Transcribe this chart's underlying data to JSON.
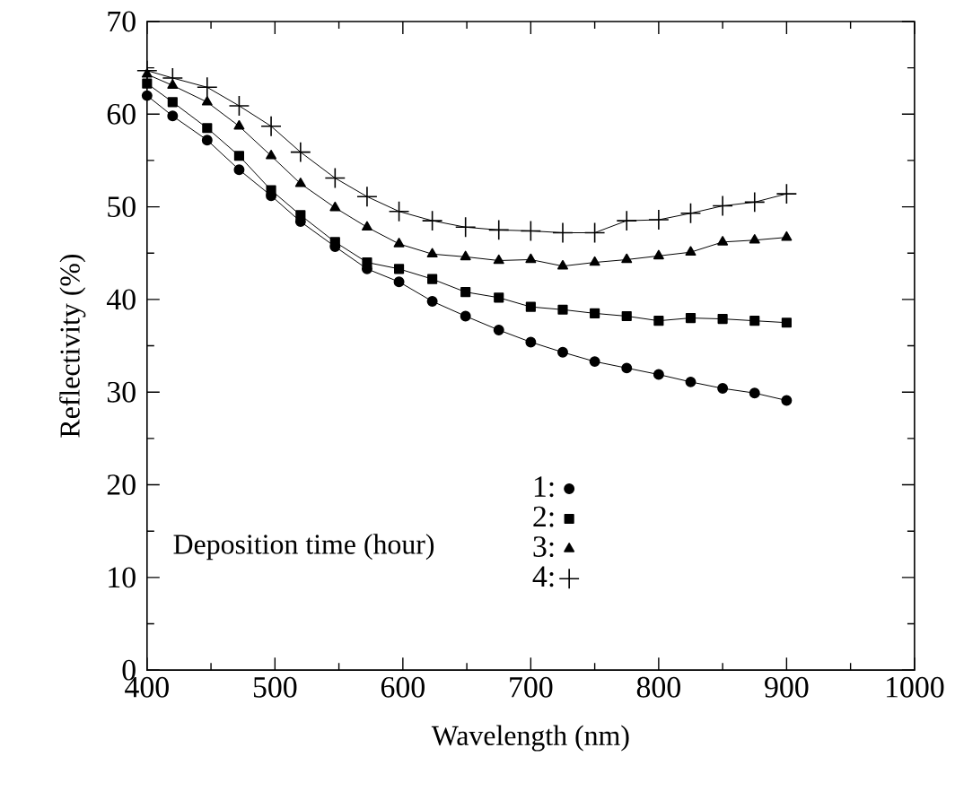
{
  "chart_data": {
    "type": "line",
    "xlabel": "Wavelength (nm)",
    "ylabel": "Reflectivity (%)",
    "legend_title": "Deposition time (hour)",
    "x": [
      400,
      420,
      447,
      472,
      497,
      520,
      547,
      572,
      597,
      623,
      649,
      675,
      700,
      725,
      750,
      775,
      800,
      825,
      850,
      875,
      900
    ],
    "series": [
      {
        "name": "1:",
        "color": "#000000",
        "marker": "circle",
        "values": [
          62.0,
          59.8,
          57.2,
          54.0,
          51.2,
          48.4,
          45.7,
          43.3,
          41.9,
          39.8,
          38.2,
          36.7,
          35.4,
          34.3,
          33.3,
          32.6,
          31.9,
          31.1,
          30.4,
          29.9,
          29.1
        ]
      },
      {
        "name": "2:",
        "color": "#000000",
        "marker": "square",
        "values": [
          63.3,
          61.3,
          58.5,
          55.5,
          51.8,
          49.1,
          46.2,
          44.0,
          43.3,
          42.2,
          40.8,
          40.2,
          39.2,
          38.9,
          38.5,
          38.2,
          37.7,
          38.0,
          37.9,
          37.7,
          37.5
        ]
      },
      {
        "name": "3:",
        "color": "#000000",
        "marker": "triangle",
        "values": [
          64.3,
          63.1,
          61.3,
          58.7,
          55.5,
          52.5,
          49.9,
          47.8,
          46.0,
          44.9,
          44.6,
          44.2,
          44.3,
          43.6,
          44.0,
          44.3,
          44.7,
          45.1,
          46.2,
          46.4,
          46.7
        ]
      },
      {
        "name": "4:",
        "color": "#000000",
        "marker": "cross",
        "values": [
          64.7,
          63.9,
          62.9,
          60.9,
          58.7,
          55.9,
          53.1,
          51.1,
          49.5,
          48.5,
          47.8,
          47.5,
          47.4,
          47.2,
          47.2,
          48.5,
          48.6,
          49.3,
          50.1,
          50.5,
          51.4
        ]
      }
    ],
    "xlim": [
      400,
      1000
    ],
    "xticks": [
      400,
      500,
      600,
      700,
      800,
      900,
      1000
    ],
    "ylim": [
      0,
      70
    ],
    "yticks": [
      0,
      10,
      20,
      30,
      40,
      50,
      60,
      70
    ],
    "grid": false,
    "legend": "bottom",
    "line_style": "solid"
  }
}
